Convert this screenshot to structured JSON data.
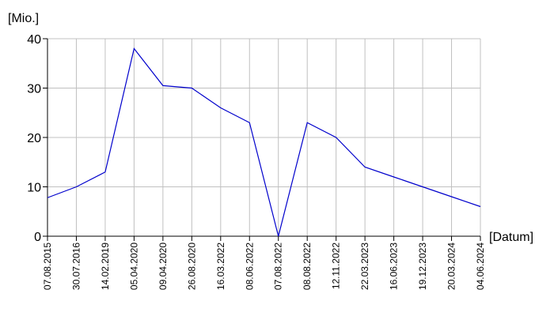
{
  "chart_data": {
    "type": "line",
    "y_label": "[Mio.]",
    "x_label": "[Datum]",
    "categories": [
      "07.08.2015",
      "30.07.2016",
      "14.02.2019",
      "05.04.2020",
      "09.04.2020",
      "26.08.2020",
      "16.03.2022",
      "08.06.2022",
      "07.08.2022",
      "08.08.2022",
      "12.11.2022",
      "22.03.2023",
      "16.06.2023",
      "19.12.2023",
      "20.03.2024",
      "04.06.2024"
    ],
    "values": [
      7.8,
      10,
      13,
      38,
      30.5,
      30,
      26,
      23,
      0,
      23,
      20,
      14,
      12,
      10,
      8,
      6
    ],
    "color": "#0000cc",
    "ylim": [
      0,
      40
    ],
    "yticks": [
      0,
      10,
      20,
      30,
      40
    ],
    "grid": true
  }
}
